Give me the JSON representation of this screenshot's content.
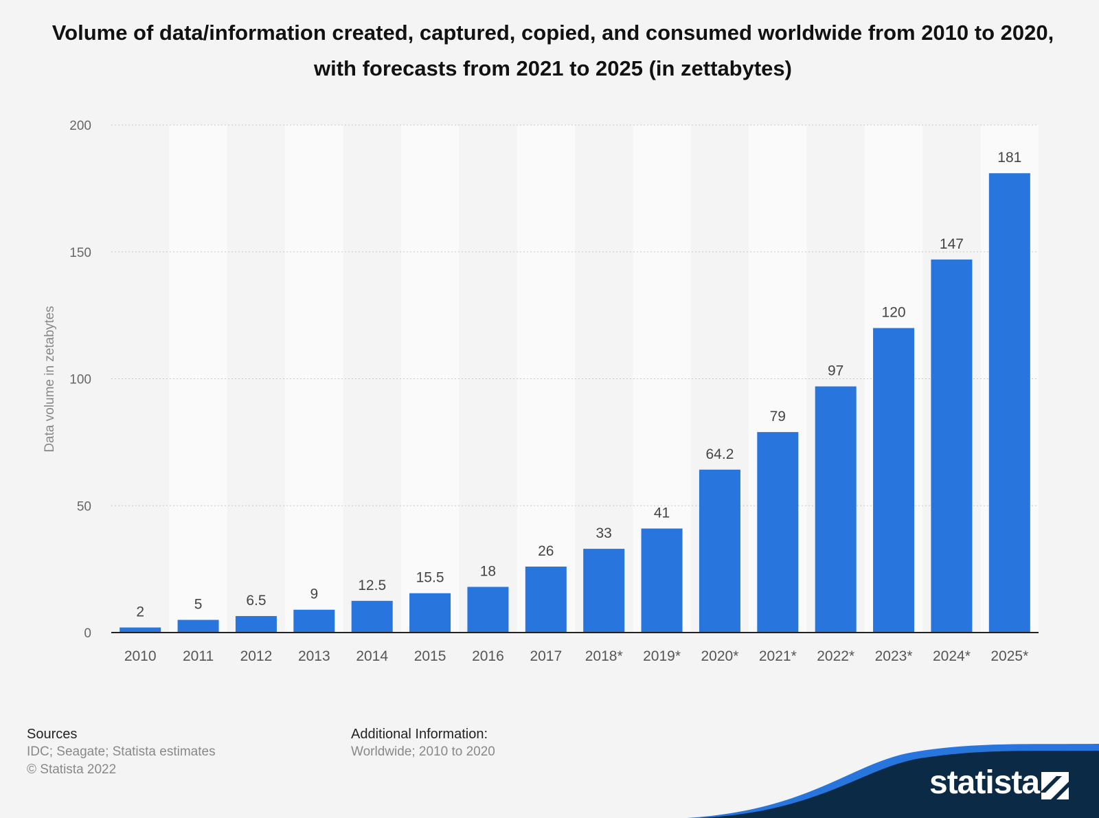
{
  "chart_data": {
    "type": "bar",
    "title": "Volume of data/information created, captured, copied, and consumed worldwide from 2010 to 2020, with forecasts from 2021 to 2025 (in zettabytes)",
    "ylabel": "Data volume in zetabytes",
    "xlabel": "",
    "categories": [
      "2010",
      "2011",
      "2012",
      "2013",
      "2014",
      "2015",
      "2016",
      "2017",
      "2018*",
      "2019*",
      "2020*",
      "2021*",
      "2022*",
      "2023*",
      "2024*",
      "2025*"
    ],
    "values": [
      2,
      5,
      6.5,
      9,
      12.5,
      15.5,
      18,
      26,
      33,
      41,
      64.2,
      79,
      97,
      120,
      147,
      181
    ],
    "value_labels": [
      "2",
      "5",
      "6.5",
      "9",
      "12.5",
      "15.5",
      "18",
      "26",
      "33",
      "41",
      "64.2",
      "79",
      "97",
      "120",
      "147",
      "181"
    ],
    "ylim": [
      0,
      200
    ],
    "yticks": [
      0,
      50,
      100,
      150,
      200
    ],
    "grid": true,
    "bar_color": "#2876dd"
  },
  "footer": {
    "sources_heading": "Sources",
    "sources_text": "IDC; Seagate; Statista estimates",
    "copyright": "© Statista 2022",
    "additional_heading": "Additional Information:",
    "additional_text": "Worldwide; 2010 to 2020"
  },
  "brand": {
    "name": "statista",
    "color": "#0b2a45",
    "accent": "#2876dd",
    "icon": "statista-logo-icon"
  }
}
